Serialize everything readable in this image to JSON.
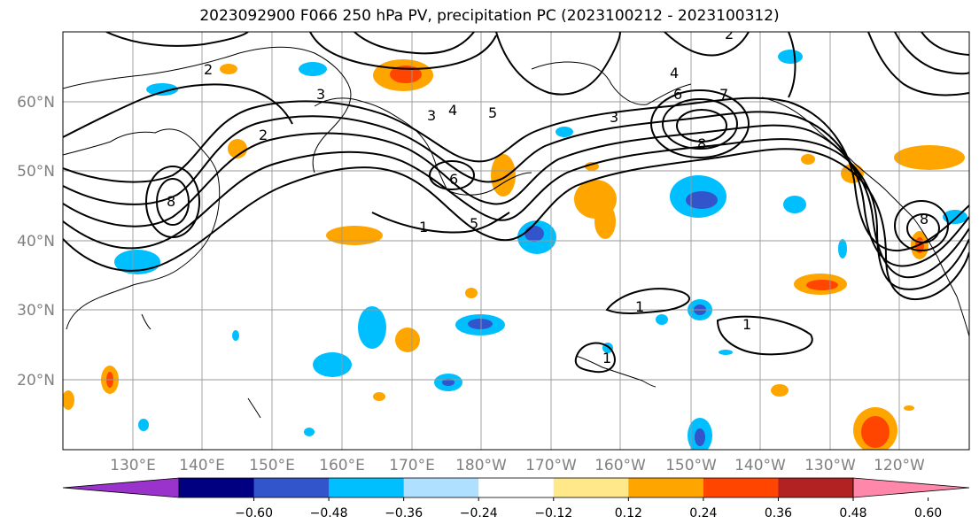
{
  "title": "2023092900 F066 250 hPa PV, precipitation PC (2023100212 - 2023100312)",
  "map": {
    "lat_labels": [
      "20°N",
      "30°N",
      "40°N",
      "50°N",
      "60°N"
    ],
    "lon_labels": [
      "130°E",
      "140°E",
      "150°E",
      "160°E",
      "170°E",
      "180°W",
      "170°W",
      "160°W",
      "150°W",
      "140°W",
      "130°W",
      "120°W"
    ],
    "pv_contour_labels": [
      "1",
      "1",
      "1",
      "1",
      "2",
      "2",
      "2",
      "3",
      "3",
      "3",
      "4",
      "4",
      "5",
      "5",
      "6",
      "6",
      "7",
      "8",
      "8",
      "8"
    ]
  },
  "colorbar": {
    "colors": [
      "#9933cc",
      "#000080",
      "#3355cc",
      "#00bfff",
      "#b0e0ff",
      "#ffffff",
      "#ffe88a",
      "#ffa500",
      "#ff4500",
      "#b22222",
      "#ff88aa"
    ],
    "tick_labels": [
      "−0.60",
      "−0.48",
      "−0.36",
      "−0.24",
      "−0.12",
      "0.12",
      "0.24",
      "0.36",
      "0.48",
      "0.60"
    ]
  }
}
